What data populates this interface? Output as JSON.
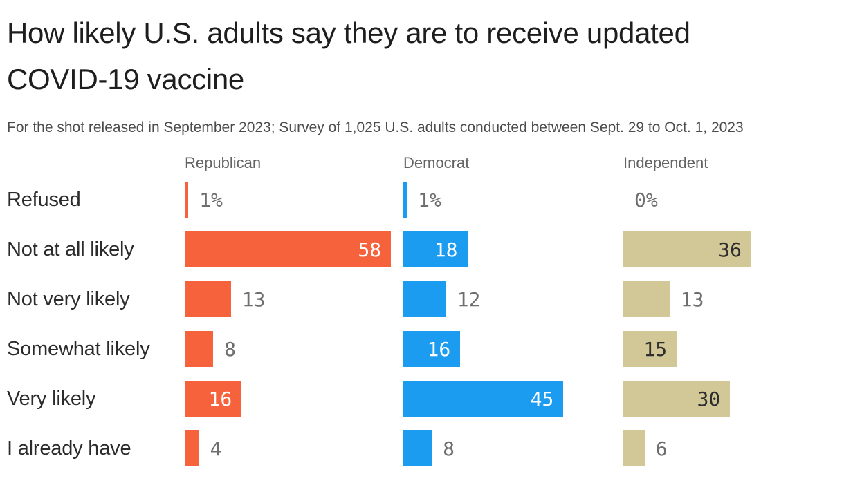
{
  "header": {
    "title": "How likely U.S. adults say they are to receive updated COVID-19 vaccine",
    "subtitle": "For the shot released in September 2023; Survey of 1,025 U.S. adults conducted between Sept. 29 to Oct. 1, 2023"
  },
  "chart_data": {
    "type": "bar",
    "orientation": "horizontal",
    "unit": "percent",
    "title": "How likely U.S. adults say they are to receive updated COVID-19 vaccine",
    "categories": [
      "Refused",
      "Not at all likely",
      "Not very likely",
      "Somewhat likely",
      "Very likely",
      "I already have"
    ],
    "series": [
      {
        "name": "Republican",
        "color": "#f5623c",
        "values": [
          1,
          58,
          13,
          8,
          16,
          4
        ]
      },
      {
        "name": "Democrat",
        "color": "#1c9cf1",
        "values": [
          1,
          18,
          12,
          16,
          45,
          8
        ]
      },
      {
        "name": "Independent",
        "color": "#d2c796",
        "values": [
          0,
          36,
          13,
          15,
          30,
          6
        ]
      }
    ],
    "value_suffix_row": "Refused",
    "value_suffix": "%",
    "xlim": [
      0,
      61
    ],
    "legend_position": "column-headers",
    "grid": false,
    "styles": {
      "inside_label_color_on_dark_bars": "#ffffff",
      "inside_label_color_on_tan_bar": "#2e2e2e",
      "outside_label_color": "#6e6e6e"
    }
  }
}
